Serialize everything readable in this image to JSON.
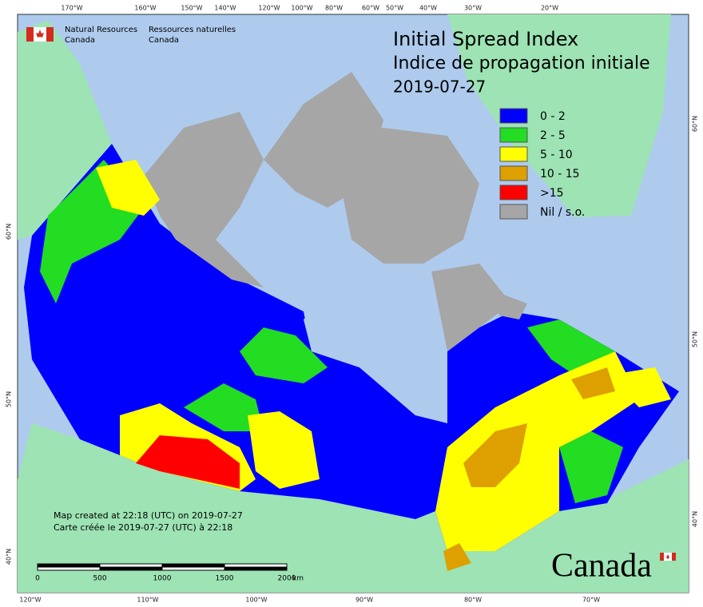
{
  "logo": {
    "en": [
      "Natural Resources",
      "Canada"
    ],
    "fr": [
      "Ressources naturelles",
      "Canada"
    ]
  },
  "title": [
    "Initial Spread Index",
    "Indice de propagation initiale",
    "2019-07-27"
  ],
  "legend": [
    {
      "label": "0 - 2",
      "color": "#0000ff"
    },
    {
      "label": "2 - 5",
      "color": "#22dd22"
    },
    {
      "label": "5 - 10",
      "color": "#ffff00"
    },
    {
      "label": "10 - 15",
      "color": "#dda000"
    },
    {
      "label": ">15",
      "color": "#ff0000"
    },
    {
      "label": "Nil / s.o.",
      "color": "#a6a6a6"
    }
  ],
  "graticule": {
    "top": [
      "170°W",
      "160°W",
      "150°W",
      "140°W",
      "120°W",
      "100°W",
      "80°W",
      "60°W",
      "50°W",
      "40°W",
      "30°W",
      "20°W"
    ],
    "bottom": [
      "120°W",
      "110°W",
      "100°W",
      "90°W",
      "80°W",
      "70°W"
    ],
    "left": [
      "60°N",
      "50°N",
      "40°N"
    ],
    "right": [
      "60°N",
      "50°N",
      "40°N"
    ]
  },
  "credit": [
    "Map created at 22:18 (UTC) on 2019-07-27",
    "Carte créée le 2019-07-27 (UTC) à 22:18"
  ],
  "scale_bar": {
    "labels": [
      "0",
      "500",
      "1000",
      "1500",
      "2000"
    ],
    "unit": "km"
  },
  "wordmark": "Canada"
}
